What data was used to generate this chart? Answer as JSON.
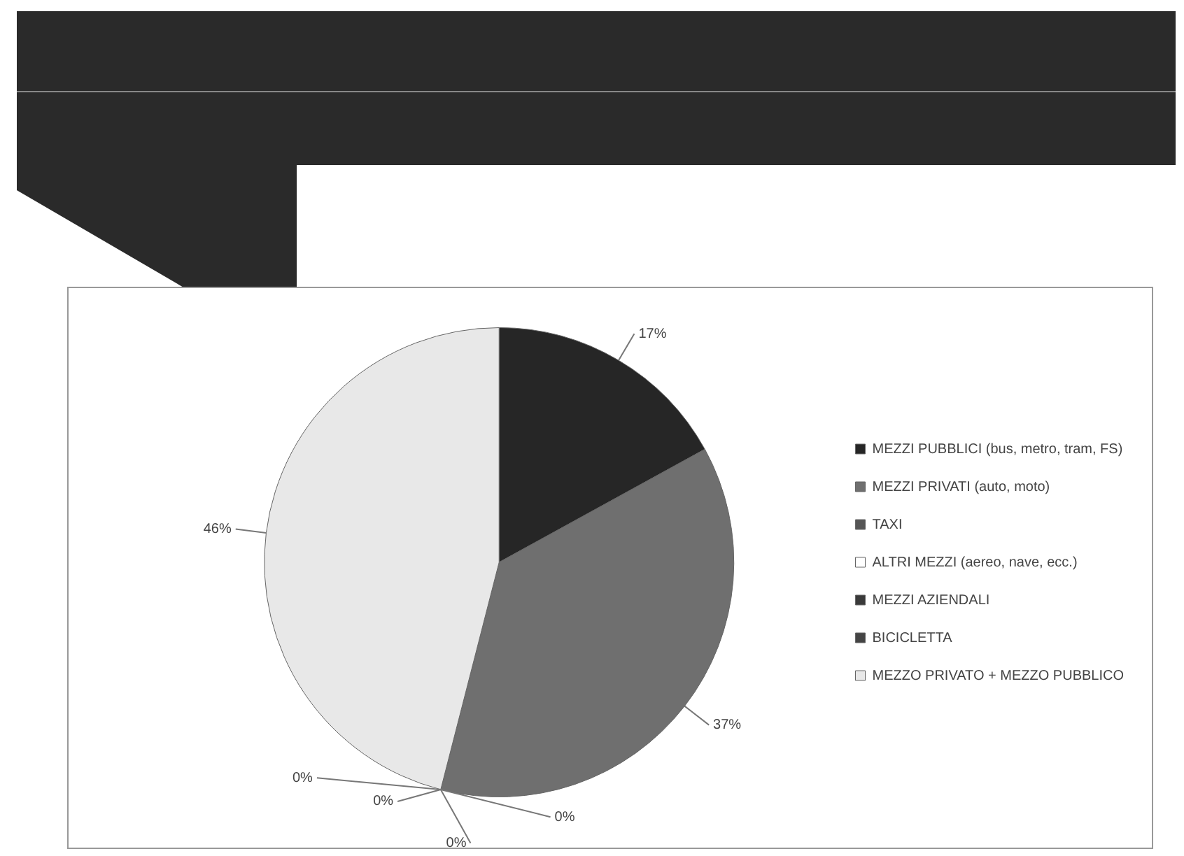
{
  "chart_data": {
    "type": "pie",
    "categories": [
      "MEZZI PUBBLICI (bus, metro, tram, FS)",
      "MEZZI PRIVATI (auto, moto)",
      "TAXI",
      "ALTRI MEZZI (aereo, nave, ecc.)",
      "MEZZI AZIENDALI",
      "BICICLETTA",
      "MEZZO PRIVATO + MEZZO PUBBLICO"
    ],
    "values": [
      17,
      37,
      0,
      0,
      0,
      0,
      46
    ],
    "value_labels": [
      "17%",
      "37%",
      "0%",
      "0%",
      "0%",
      "0%",
      "46%"
    ],
    "colors": [
      "#262626",
      "#6f6f6f",
      "#555555",
      "#ffffff",
      "#3a3a3a",
      "#444444",
      "#e8e8e8"
    ],
    "legend": "right"
  }
}
